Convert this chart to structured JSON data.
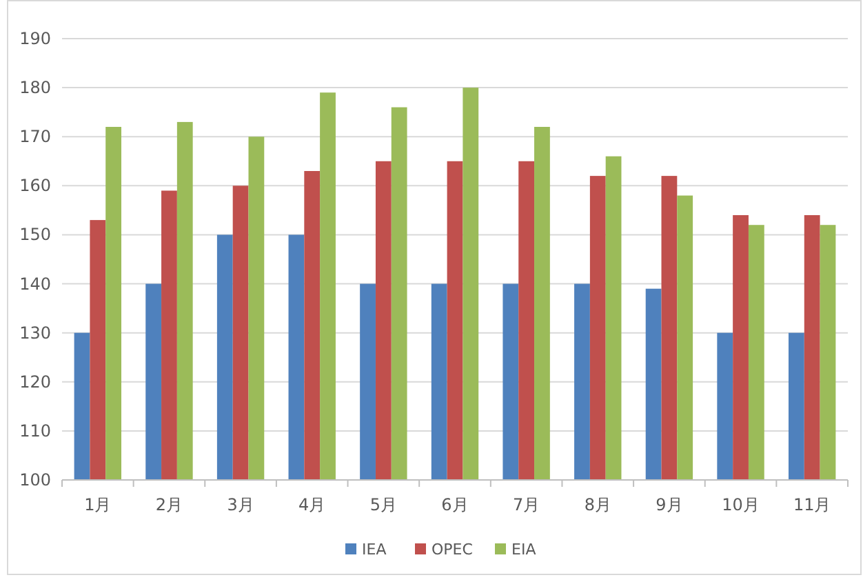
{
  "chart_data": {
    "type": "bar",
    "categories": [
      "1月",
      "2月",
      "3月",
      "4月",
      "5月",
      "6月",
      "7月",
      "8月",
      "9月",
      "10月",
      "11月"
    ],
    "series": [
      {
        "name": "IEA",
        "color": "#4f81bd",
        "values": [
          130,
          140,
          150,
          150,
          140,
          140,
          140,
          140,
          139,
          130,
          130
        ]
      },
      {
        "name": "OPEC",
        "color": "#c0504d",
        "values": [
          153,
          159,
          160,
          163,
          165,
          165,
          165,
          162,
          162,
          154,
          154
        ]
      },
      {
        "name": "EIA",
        "color": "#9bbb59",
        "values": [
          172,
          173,
          170,
          179,
          176,
          180,
          172,
          166,
          158,
          152,
          152
        ]
      }
    ],
    "ylim": [
      100,
      190
    ],
    "yticks": [
      100,
      110,
      120,
      130,
      140,
      150,
      160,
      170,
      180,
      190
    ],
    "grid": "y",
    "legend": "bottom"
  }
}
